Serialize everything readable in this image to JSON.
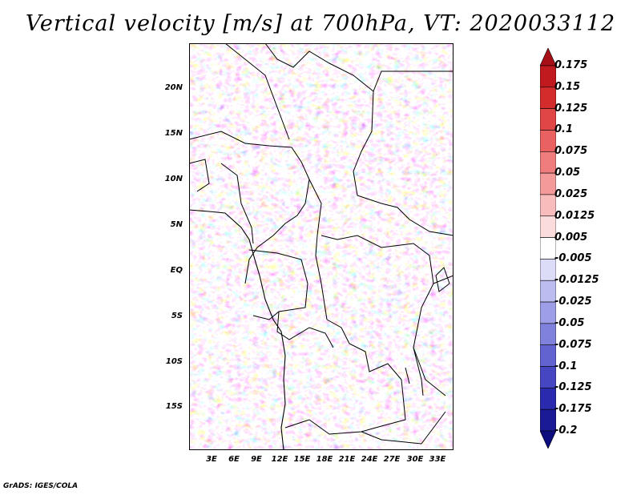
{
  "title": "Vertical velocity [m/s] at 700hPa, VT: 2020033112",
  "credit": "GrADS: IGES/COLA",
  "y_axis_labels": [
    "20N",
    "15N",
    "10N",
    "5N",
    "EQ",
    "5S",
    "10S",
    "15S"
  ],
  "x_axis_labels": [
    "3E",
    "6E",
    "9E",
    "12E",
    "15E",
    "18E",
    "21E",
    "24E",
    "27E",
    "30E",
    "33E"
  ],
  "colorbar": {
    "labels": [
      "0.175",
      "0.15",
      "0.125",
      "0.1",
      "0.075",
      "0.05",
      "0.025",
      "0.0125",
      "0.005",
      "-0.005",
      "-0.0125",
      "-0.025",
      "-0.05",
      "-0.075",
      "-0.1",
      "-0.125",
      "-0.175",
      "-0.2"
    ],
    "colors": [
      "#a50f15",
      "#c01a1e",
      "#d42c2c",
      "#e04646",
      "#e96161",
      "#ef7d7d",
      "#f49a9a",
      "#f8bcbc",
      "#fbdcdc",
      "#ffffff",
      "#dcdcf8",
      "#bcbcf0",
      "#9e9ee8",
      "#8080dd",
      "#6262d0",
      "#4646c2",
      "#2a2aae",
      "#1a1a96",
      "#0d0d80"
    ]
  }
}
